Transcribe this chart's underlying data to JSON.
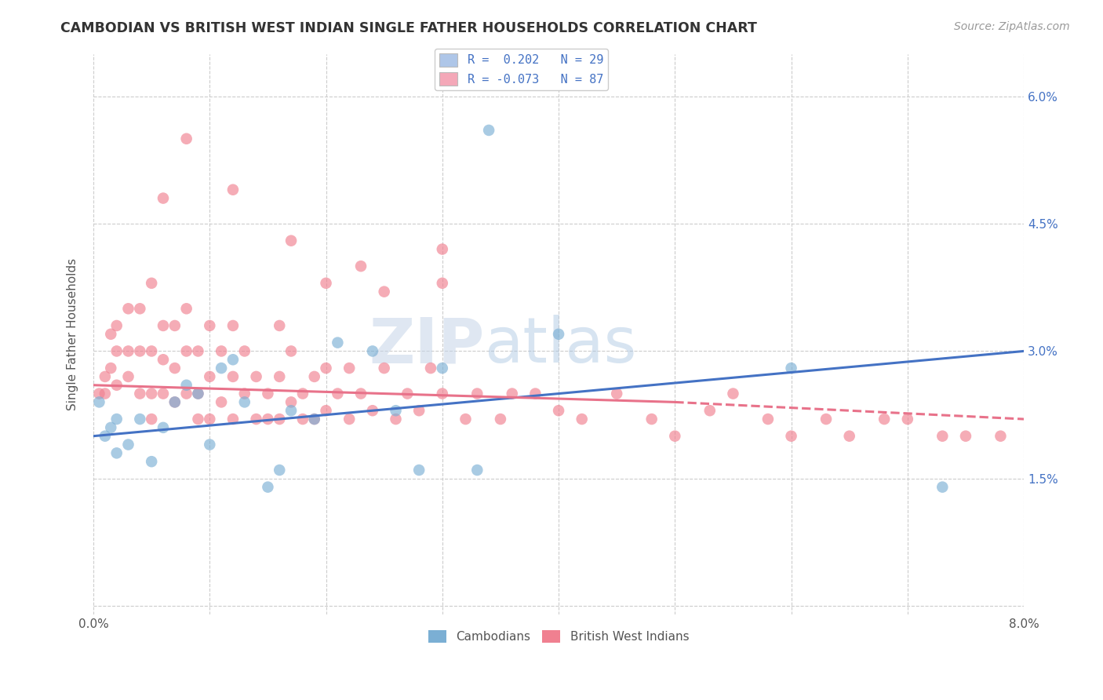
{
  "title": "CAMBODIAN VS BRITISH WEST INDIAN SINGLE FATHER HOUSEHOLDS CORRELATION CHART",
  "source": "Source: ZipAtlas.com",
  "ylabel": "Single Father Households",
  "x_min": 0.0,
  "x_max": 0.08,
  "y_min": 0.0,
  "y_max": 0.065,
  "cambodian_color": "#7bafd4",
  "bwi_color": "#f08090",
  "trendline_cambodian_color": "#4472c4",
  "trendline_bwi_color": "#e8728a",
  "legend_cam_color": "#aec6e8",
  "legend_bwi_color": "#f4a8b8",
  "watermark_color": "#d0dff0",
  "R_cambodian": 0.202,
  "N_cambodian": 29,
  "R_bwi": -0.073,
  "N_bwi": 87,
  "cam_x": [
    0.0005,
    0.001,
    0.0015,
    0.002,
    0.002,
    0.003,
    0.004,
    0.005,
    0.006,
    0.007,
    0.008,
    0.009,
    0.01,
    0.011,
    0.012,
    0.013,
    0.015,
    0.016,
    0.017,
    0.019,
    0.021,
    0.024,
    0.026,
    0.028,
    0.03,
    0.033,
    0.04,
    0.06,
    0.073
  ],
  "cam_y": [
    0.024,
    0.02,
    0.021,
    0.018,
    0.022,
    0.019,
    0.022,
    0.017,
    0.021,
    0.024,
    0.026,
    0.025,
    0.019,
    0.028,
    0.029,
    0.024,
    0.014,
    0.016,
    0.023,
    0.022,
    0.031,
    0.03,
    0.023,
    0.016,
    0.028,
    0.016,
    0.032,
    0.028,
    0.014
  ],
  "bwi_x": [
    0.0005,
    0.001,
    0.001,
    0.0015,
    0.0015,
    0.002,
    0.002,
    0.002,
    0.003,
    0.003,
    0.003,
    0.004,
    0.004,
    0.004,
    0.005,
    0.005,
    0.005,
    0.005,
    0.006,
    0.006,
    0.006,
    0.007,
    0.007,
    0.007,
    0.008,
    0.008,
    0.008,
    0.009,
    0.009,
    0.009,
    0.01,
    0.01,
    0.01,
    0.011,
    0.011,
    0.012,
    0.012,
    0.012,
    0.013,
    0.013,
    0.014,
    0.014,
    0.015,
    0.015,
    0.016,
    0.016,
    0.016,
    0.017,
    0.017,
    0.018,
    0.018,
    0.019,
    0.019,
    0.02,
    0.02,
    0.021,
    0.022,
    0.022,
    0.023,
    0.024,
    0.025,
    0.026,
    0.027,
    0.028,
    0.029,
    0.03,
    0.032,
    0.033,
    0.035,
    0.036,
    0.038,
    0.04,
    0.042,
    0.045,
    0.048,
    0.05,
    0.053,
    0.055,
    0.058,
    0.06,
    0.063,
    0.065,
    0.068,
    0.07,
    0.073,
    0.075,
    0.078
  ],
  "bwi_y": [
    0.025,
    0.025,
    0.027,
    0.028,
    0.032,
    0.026,
    0.03,
    0.033,
    0.027,
    0.03,
    0.035,
    0.025,
    0.03,
    0.035,
    0.022,
    0.025,
    0.03,
    0.038,
    0.025,
    0.029,
    0.033,
    0.024,
    0.028,
    0.033,
    0.025,
    0.03,
    0.035,
    0.022,
    0.025,
    0.03,
    0.022,
    0.027,
    0.033,
    0.024,
    0.03,
    0.022,
    0.027,
    0.033,
    0.025,
    0.03,
    0.022,
    0.027,
    0.022,
    0.025,
    0.022,
    0.027,
    0.033,
    0.024,
    0.03,
    0.022,
    0.025,
    0.022,
    0.027,
    0.023,
    0.028,
    0.025,
    0.022,
    0.028,
    0.025,
    0.023,
    0.028,
    0.022,
    0.025,
    0.023,
    0.028,
    0.025,
    0.022,
    0.025,
    0.022,
    0.025,
    0.025,
    0.023,
    0.022,
    0.025,
    0.022,
    0.02,
    0.023,
    0.025,
    0.022,
    0.02,
    0.022,
    0.02,
    0.022,
    0.022,
    0.02,
    0.02,
    0.02
  ],
  "bwi_outlier_x": [
    0.006,
    0.008,
    0.012,
    0.017,
    0.02,
    0.023,
    0.025,
    0.03,
    0.03
  ],
  "bwi_outlier_y": [
    0.048,
    0.055,
    0.049,
    0.043,
    0.038,
    0.04,
    0.037,
    0.042,
    0.038
  ],
  "cam_high_x": [
    0.034
  ],
  "cam_high_y": [
    0.056
  ]
}
